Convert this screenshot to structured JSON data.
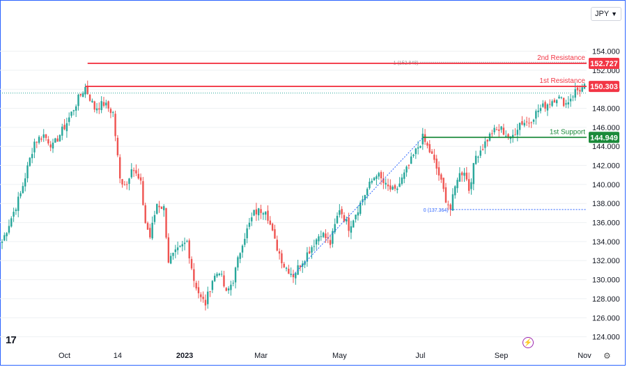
{
  "currency": {
    "label": "JPY"
  },
  "icons": {
    "dropdown": "chevron-down-icon",
    "logo": "tradingview-logo",
    "bolt": "lightning-icon",
    "settings": "gear-icon"
  },
  "logo_text": "17",
  "colors": {
    "bull": "#26a69a",
    "bear": "#ef5350",
    "resistance": "#f23645",
    "support": "#1b8a3a",
    "fib": "#2962ff",
    "grid": "#eef0f3",
    "axis_text": "#131722"
  },
  "chart_data": {
    "type": "candlestick",
    "title": "",
    "ylim": [
      122.8,
      156.6
    ],
    "yticks": [
      124,
      126,
      128,
      130,
      132,
      134,
      136,
      138,
      140,
      142,
      144,
      146,
      148,
      150,
      152,
      154
    ],
    "ytick_labels": [
      "124.000",
      "126.000",
      "128.000",
      "130.000",
      "132.000",
      "134.000",
      "136.000",
      "138.000",
      "140.000",
      "142.000",
      "144.000",
      "146.000",
      "148.000",
      "150.000",
      "152.000",
      "154.000"
    ],
    "xtick_labels": [
      "Oct",
      "14",
      "2023",
      "Mar",
      "May",
      "Jul",
      "Sep",
      "Nov"
    ],
    "xtick_index": [
      27,
      50,
      79,
      112,
      146,
      181,
      216,
      252
    ],
    "candles": 253,
    "last_price": 149.6,
    "path_keypoints": [
      [
        0,
        134.0
      ],
      [
        8,
        139.0
      ],
      [
        14,
        144.5
      ],
      [
        18,
        145.2
      ],
      [
        22,
        144.0
      ],
      [
        28,
        146.5
      ],
      [
        33,
        149.0
      ],
      [
        36,
        150.2
      ],
      [
        40,
        148.0
      ],
      [
        44,
        148.5
      ],
      [
        48,
        147.5
      ],
      [
        51,
        140.5
      ],
      [
        54,
        140.0
      ],
      [
        56,
        142.0
      ],
      [
        60,
        140.0
      ],
      [
        62,
        136.0
      ],
      [
        64,
        134.5
      ],
      [
        67,
        138.0
      ],
      [
        70,
        137.5
      ],
      [
        72,
        132.0
      ],
      [
        76,
        133.0
      ],
      [
        80,
        134.0
      ],
      [
        83,
        130.0
      ],
      [
        86,
        128.0
      ],
      [
        88,
        127.5
      ],
      [
        91,
        130.0
      ],
      [
        94,
        131.0
      ],
      [
        97,
        128.5
      ],
      [
        100,
        130.0
      ],
      [
        104,
        134.0
      ],
      [
        109,
        137.0
      ],
      [
        114,
        137.5
      ],
      [
        118,
        134.0
      ],
      [
        122,
        131.5
      ],
      [
        126,
        130.5
      ],
      [
        130,
        132.0
      ],
      [
        134,
        133.5
      ],
      [
        138,
        135.0
      ],
      [
        142,
        133.8
      ],
      [
        146,
        137.5
      ],
      [
        150,
        135.5
      ],
      [
        154,
        137.5
      ],
      [
        158,
        139.5
      ],
      [
        162,
        141.2
      ],
      [
        166,
        139.8
      ],
      [
        170,
        139.2
      ],
      [
        174,
        141.0
      ],
      [
        178,
        143.0
      ],
      [
        182,
        144.9
      ],
      [
        186,
        143.0
      ],
      [
        189,
        141.0
      ],
      [
        192,
        138.5
      ],
      [
        194,
        137.4
      ],
      [
        197,
        140.8
      ],
      [
        200,
        141.5
      ],
      [
        202,
        139.5
      ],
      [
        205,
        143.0
      ],
      [
        208,
        144.0
      ],
      [
        212,
        145.5
      ],
      [
        216,
        145.8
      ],
      [
        220,
        144.7
      ],
      [
        224,
        146.5
      ],
      [
        228,
        146.6
      ],
      [
        232,
        147.8
      ],
      [
        236,
        148.5
      ],
      [
        240,
        149.2
      ],
      [
        244,
        148.5
      ],
      [
        248,
        149.8
      ],
      [
        252,
        150.2
      ]
    ],
    "levels": [
      {
        "name": "2nd Resistance",
        "value": 152.727,
        "label": "152.727"
      },
      {
        "name": "1st Resistance",
        "value": 150.303,
        "label": "150.303"
      },
      {
        "name": "1st Support",
        "value": 144.949,
        "label": "144.949"
      }
    ],
    "fibonacci": [
      {
        "text": "1 (152.848)",
        "value": 152.848
      },
      {
        "text": "0 (137.364)",
        "value": 137.364
      }
    ]
  }
}
